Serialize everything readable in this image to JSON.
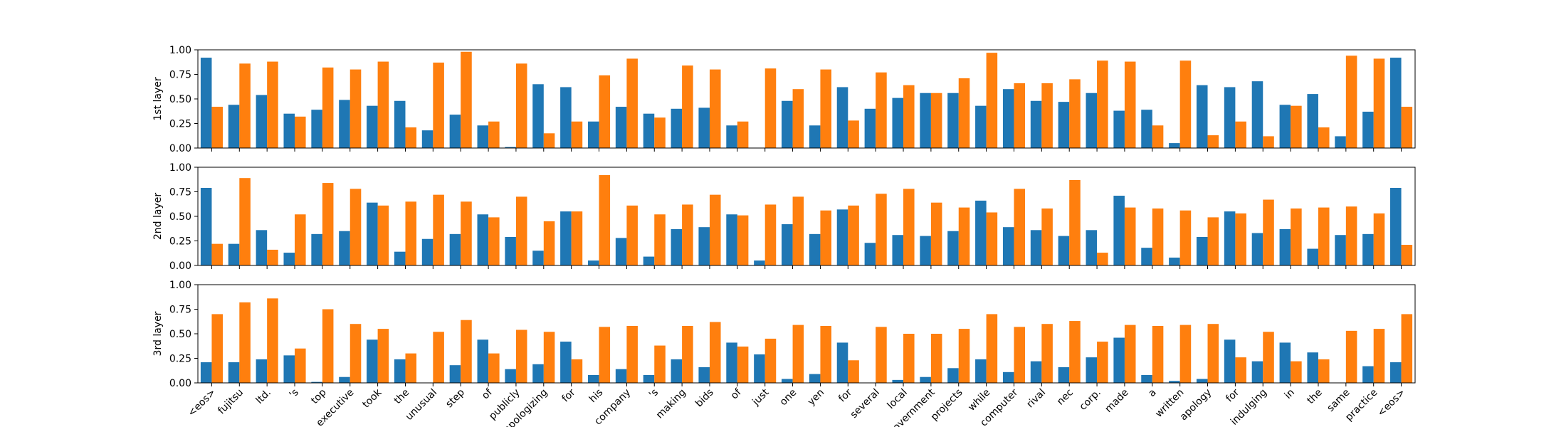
{
  "chart_data": {
    "type": "bar",
    "categories": [
      "<eos>",
      "fujitsu",
      "ltd.",
      "'s",
      "top",
      "executive",
      "took",
      "the",
      "unusual",
      "step",
      "of",
      "publicly",
      "apologizing",
      "for",
      "his",
      "company",
      "'s",
      "making",
      "bids",
      "of",
      "just",
      "one",
      "yen",
      "for",
      "several",
      "local",
      "government",
      "projects",
      "while",
      "computer",
      "rival",
      "nec",
      "corp.",
      "made",
      "a",
      "written",
      "apology",
      "for",
      "indulging",
      "in",
      "the",
      "same",
      "practice",
      "<eos>"
    ],
    "yticks": [
      "0.00",
      "0.25",
      "0.50",
      "0.75",
      "1.00"
    ],
    "ylim": [
      0,
      1
    ],
    "colors": {
      "series1": "#1f77b4",
      "series2": "#ff7f0e"
    },
    "panels": [
      {
        "ylabel": "1st layer",
        "series": [
          {
            "values": [
              0.92,
              0.44,
              0.54,
              0.35,
              0.39,
              0.49,
              0.43,
              0.48,
              0.18,
              0.34,
              0.23,
              0.01,
              0.65,
              0.62,
              0.27,
              0.42,
              0.35,
              0.4,
              0.41,
              0.23,
              0.0,
              0.48,
              0.23,
              0.62,
              0.4,
              0.51,
              0.56,
              0.56,
              0.43,
              0.6,
              0.48,
              0.47,
              0.56,
              0.38,
              0.39,
              0.05,
              0.64,
              0.62,
              0.68,
              0.44,
              0.55,
              0.12,
              0.37,
              0.92
            ]
          },
          {
            "values": [
              0.42,
              0.86,
              0.88,
              0.32,
              0.82,
              0.8,
              0.88,
              0.21,
              0.87,
              0.98,
              0.27,
              0.86,
              0.15,
              0.27,
              0.74,
              0.91,
              0.31,
              0.84,
              0.8,
              0.27,
              0.81,
              0.6,
              0.8,
              0.28,
              0.77,
              0.64,
              0.56,
              0.71,
              0.97,
              0.66,
              0.66,
              0.7,
              0.89,
              0.88,
              0.23,
              0.89,
              0.13,
              0.27,
              0.12,
              0.43,
              0.21,
              0.94,
              0.91,
              0.42
            ]
          }
        ]
      },
      {
        "ylabel": "2nd layer",
        "series": [
          {
            "values": [
              0.79,
              0.22,
              0.36,
              0.13,
              0.32,
              0.35,
              0.64,
              0.14,
              0.27,
              0.32,
              0.52,
              0.29,
              0.15,
              0.55,
              0.05,
              0.28,
              0.09,
              0.37,
              0.39,
              0.52,
              0.05,
              0.42,
              0.32,
              0.57,
              0.23,
              0.31,
              0.3,
              0.35,
              0.66,
              0.39,
              0.36,
              0.3,
              0.36,
              0.71,
              0.18,
              0.08,
              0.29,
              0.55,
              0.33,
              0.37,
              0.17,
              0.31,
              0.32,
              0.79
            ]
          },
          {
            "values": [
              0.22,
              0.89,
              0.16,
              0.52,
              0.84,
              0.78,
              0.61,
              0.65,
              0.72,
              0.65,
              0.49,
              0.7,
              0.45,
              0.55,
              0.92,
              0.61,
              0.52,
              0.62,
              0.72,
              0.51,
              0.62,
              0.7,
              0.56,
              0.61,
              0.73,
              0.78,
              0.64,
              0.59,
              0.54,
              0.78,
              0.58,
              0.87,
              0.13,
              0.59,
              0.58,
              0.56,
              0.49,
              0.53,
              0.67,
              0.58,
              0.59,
              0.6,
              0.53,
              0.21
            ]
          }
        ]
      },
      {
        "ylabel": "3rd layer",
        "series": [
          {
            "values": [
              0.21,
              0.21,
              0.24,
              0.28,
              0.01,
              0.06,
              0.44,
              0.24,
              0.0,
              0.18,
              0.44,
              0.14,
              0.19,
              0.42,
              0.08,
              0.14,
              0.08,
              0.24,
              0.16,
              0.41,
              0.29,
              0.04,
              0.09,
              0.41,
              0.0,
              0.03,
              0.06,
              0.15,
              0.24,
              0.11,
              0.22,
              0.16,
              0.26,
              0.46,
              0.08,
              0.02,
              0.04,
              0.44,
              0.22,
              0.41,
              0.31,
              0.0,
              0.17,
              0.21
            ]
          },
          {
            "values": [
              0.7,
              0.82,
              0.86,
              0.35,
              0.75,
              0.6,
              0.55,
              0.3,
              0.52,
              0.64,
              0.3,
              0.54,
              0.52,
              0.24,
              0.57,
              0.58,
              0.38,
              0.58,
              0.62,
              0.37,
              0.45,
              0.59,
              0.58,
              0.23,
              0.57,
              0.5,
              0.5,
              0.55,
              0.7,
              0.57,
              0.6,
              0.63,
              0.42,
              0.59,
              0.58,
              0.59,
              0.6,
              0.26,
              0.52,
              0.22,
              0.24,
              0.53,
              0.55,
              0.7
            ]
          }
        ]
      }
    ]
  }
}
